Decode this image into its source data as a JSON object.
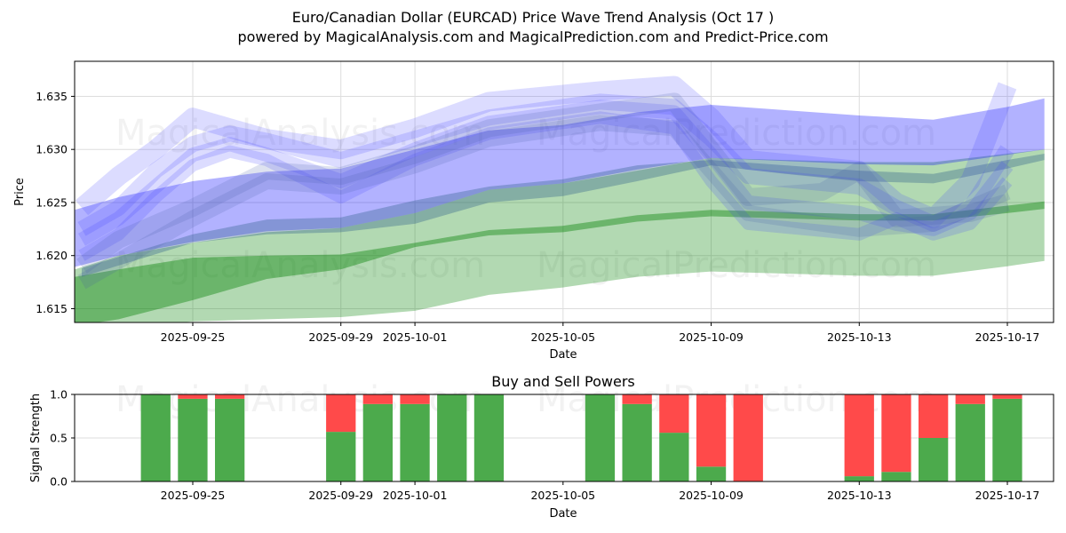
{
  "header": {
    "title": "Euro/Canadian Dollar (EURCAD) Price Wave Trend Analysis (Oct 17 )",
    "subtitle": "powered by MagicalAnalysis.com and MagicalPrediction.com and Predict-Price.com"
  },
  "watermarks": [
    "MagicalAnalysis.com",
    "MagicalPrediction.com"
  ],
  "colors": {
    "blue_band": "#0000ff",
    "green_band": "#008000",
    "buy": "#4caa4c",
    "sell": "#ff4a4a",
    "grid": "#dddddd"
  },
  "chart_data": [
    {
      "type": "area",
      "title": "",
      "xlabel": "Date",
      "ylabel": "Price",
      "ylim": [
        1.6137,
        1.6383
      ],
      "xlim": [
        "2025-09-21",
        "2025-10-18"
      ],
      "x_ticks": [
        "2025-09-25",
        "2025-09-29",
        "2025-10-01",
        "2025-10-05",
        "2025-10-09",
        "2025-10-13",
        "2025-10-17"
      ],
      "y_ticks": [
        "1.615",
        "1.620",
        "1.625",
        "1.630",
        "1.635"
      ],
      "grid": true,
      "series": [
        {
          "name": "green-wide-band",
          "color": "green",
          "opacity": 0.3,
          "x": [
            "2025-09-21",
            "2025-09-23",
            "2025-09-25",
            "2025-09-27",
            "2025-09-29",
            "2025-10-01",
            "2025-10-03",
            "2025-10-05",
            "2025-10-07",
            "2025-10-09",
            "2025-10-11",
            "2025-10-13",
            "2025-10-15",
            "2025-10-17",
            "2025-10-18"
          ],
          "upper": [
            1.6178,
            1.62,
            1.6212,
            1.6222,
            1.6226,
            1.624,
            1.6262,
            1.6268,
            1.628,
            1.6292,
            1.629,
            1.6288,
            1.6288,
            1.6296,
            1.63
          ],
          "lower": [
            1.6125,
            1.613,
            1.6138,
            1.614,
            1.6142,
            1.6148,
            1.6163,
            1.617,
            1.618,
            1.6185,
            1.6183,
            1.6181,
            1.6181,
            1.619,
            1.6195
          ]
        },
        {
          "name": "green-mid-band",
          "color": "green",
          "opacity": 0.4,
          "x": [
            "2025-09-21",
            "2025-09-23",
            "2025-09-25",
            "2025-09-27",
            "2025-09-29",
            "2025-10-01",
            "2025-10-03",
            "2025-10-05",
            "2025-10-07",
            "2025-10-09",
            "2025-10-11",
            "2025-10-13",
            "2025-10-15",
            "2025-10-17",
            "2025-10-18"
          ],
          "upper": [
            1.6175,
            1.6187,
            1.6198,
            1.62,
            1.6201,
            1.6212,
            1.6224,
            1.6228,
            1.6238,
            1.6243,
            1.6241,
            1.6239,
            1.6239,
            1.6247,
            1.6251
          ],
          "lower": [
            1.613,
            1.614,
            1.6158,
            1.6178,
            1.6187,
            1.6208,
            1.6219,
            1.6222,
            1.6232,
            1.6237,
            1.6235,
            1.6233,
            1.6233,
            1.624,
            1.6244
          ]
        },
        {
          "name": "blue-wide-band",
          "color": "blue",
          "opacity": 0.3,
          "x": [
            "2025-09-21",
            "2025-09-23",
            "2025-09-25",
            "2025-09-27",
            "2025-09-29",
            "2025-10-01",
            "2025-10-03",
            "2025-10-05",
            "2025-10-07",
            "2025-10-09",
            "2025-10-11",
            "2025-10-13",
            "2025-10-15",
            "2025-10-17",
            "2025-10-18"
          ],
          "upper": [
            1.6235,
            1.6255,
            1.627,
            1.6279,
            1.6282,
            1.63,
            1.6318,
            1.6323,
            1.6335,
            1.6342,
            1.6337,
            1.6332,
            1.6328,
            1.634,
            1.6348
          ],
          "lower": [
            1.6182,
            1.62,
            1.6213,
            1.6223,
            1.6226,
            1.624,
            1.6262,
            1.6268,
            1.6281,
            1.6292,
            1.6289,
            1.6286,
            1.6285,
            1.6295,
            1.63
          ]
        },
        {
          "name": "blue-grey-band",
          "color": "slate",
          "opacity": 0.35,
          "x": [
            "2025-09-22",
            "2025-09-25",
            "2025-09-27",
            "2025-09-29",
            "2025-10-01",
            "2025-10-03",
            "2025-10-05",
            "2025-10-07",
            "2025-10-09",
            "2025-10-11",
            "2025-10-13",
            "2025-10-15",
            "2025-10-17",
            "2025-10-18"
          ],
          "upper": [
            1.6188,
            1.622,
            1.6234,
            1.6236,
            1.6252,
            1.6265,
            1.6272,
            1.6285,
            1.629,
            1.6285,
            1.628,
            1.6277,
            1.629,
            1.6296
          ],
          "lower": [
            1.618,
            1.6212,
            1.622,
            1.6222,
            1.623,
            1.625,
            1.6256,
            1.627,
            1.6285,
            1.6277,
            1.627,
            1.6268,
            1.6282,
            1.629
          ]
        }
      ],
      "waves": [
        {
          "x": [
            "2025-09-22",
            "2025-09-23",
            "2025-09-24",
            "2025-09-25",
            "2025-09-26",
            "2025-09-27",
            "2025-09-29",
            "2025-10-01",
            "2025-10-03",
            "2025-10-06",
            "2025-10-08",
            "2025-10-09",
            "2025-10-10",
            "2025-10-13",
            "2025-10-14",
            "2025-10-15",
            "2025-10-16",
            "2025-10-17"
          ],
          "y": [
            1.6245,
            1.6275,
            1.63,
            1.633,
            1.632,
            1.631,
            1.63,
            1.632,
            1.6345,
            1.6355,
            1.636,
            1.633,
            1.629,
            1.628,
            1.625,
            1.6235,
            1.627,
            1.636
          ]
        },
        {
          "x": [
            "2025-09-22",
            "2025-09-23",
            "2025-09-24",
            "2025-09-25",
            "2025-09-26",
            "2025-09-27",
            "2025-09-29",
            "2025-10-01",
            "2025-10-03",
            "2025-10-06",
            "2025-10-08",
            "2025-10-09",
            "2025-10-10",
            "2025-10-13",
            "2025-10-14",
            "2025-10-15",
            "2025-10-16",
            "2025-10-17"
          ],
          "y": [
            1.6225,
            1.6245,
            1.628,
            1.6305,
            1.6315,
            1.6308,
            1.629,
            1.631,
            1.633,
            1.6345,
            1.634,
            1.631,
            1.6275,
            1.6265,
            1.6245,
            1.623,
            1.6245,
            1.63
          ]
        },
        {
          "x": [
            "2025-09-22",
            "2025-09-23",
            "2025-09-24",
            "2025-09-25",
            "2025-09-26",
            "2025-09-27",
            "2025-09-29",
            "2025-10-01",
            "2025-10-03",
            "2025-10-06",
            "2025-10-08",
            "2025-10-09",
            "2025-10-10",
            "2025-10-13",
            "2025-10-14",
            "2025-10-15",
            "2025-10-16",
            "2025-10-17"
          ],
          "y": [
            1.6215,
            1.6235,
            1.6265,
            1.6295,
            1.6305,
            1.6295,
            1.627,
            1.63,
            1.6325,
            1.634,
            1.6335,
            1.6295,
            1.625,
            1.624,
            1.623,
            1.6225,
            1.624,
            1.6285
          ]
        },
        {
          "x": [
            "2025-09-22",
            "2025-09-23",
            "2025-09-24",
            "2025-09-25",
            "2025-09-26",
            "2025-09-27",
            "2025-09-29",
            "2025-10-01",
            "2025-10-03",
            "2025-10-06",
            "2025-10-08",
            "2025-10-09",
            "2025-10-10",
            "2025-10-13",
            "2025-10-14",
            "2025-10-15",
            "2025-10-16",
            "2025-10-17"
          ],
          "y": [
            1.62,
            1.622,
            1.6255,
            1.6285,
            1.6298,
            1.629,
            1.6255,
            1.629,
            1.6315,
            1.633,
            1.632,
            1.627,
            1.623,
            1.622,
            1.6235,
            1.622,
            1.623,
            1.627
          ]
        },
        {
          "x": [
            "2025-09-22",
            "2025-09-23",
            "2025-09-25",
            "2025-09-27",
            "2025-09-29",
            "2025-10-01",
            "2025-10-03",
            "2025-10-06",
            "2025-10-08",
            "2025-10-09",
            "2025-10-10",
            "2025-10-12",
            "2025-10-13",
            "2025-10-14",
            "2025-10-16",
            "2025-10-17"
          ],
          "y": [
            1.619,
            1.6215,
            1.6245,
            1.628,
            1.6275,
            1.6295,
            1.632,
            1.6335,
            1.6345,
            1.63,
            1.6255,
            1.626,
            1.628,
            1.6235,
            1.624,
            1.625
          ]
        },
        {
          "x": [
            "2025-09-22",
            "2025-09-23",
            "2025-09-25",
            "2025-09-27",
            "2025-09-29",
            "2025-10-01",
            "2025-10-03",
            "2025-10-06",
            "2025-10-08",
            "2025-10-09",
            "2025-10-10",
            "2025-10-13",
            "2025-10-15",
            "2025-10-17"
          ],
          "y": [
            1.6175,
            1.6195,
            1.6235,
            1.627,
            1.6265,
            1.6285,
            1.631,
            1.6325,
            1.632,
            1.628,
            1.624,
            1.6225,
            1.623,
            1.626
          ]
        }
      ]
    },
    {
      "type": "bar",
      "title": "Buy and Sell Powers",
      "xlabel": "Date",
      "ylabel": "Signal Strength",
      "ylim": [
        0,
        1
      ],
      "y_ticks": [
        "0.0",
        "0.5",
        "1.0"
      ],
      "x_ticks": [
        "2025-09-25",
        "2025-09-29",
        "2025-10-01",
        "2025-10-05",
        "2025-10-09",
        "2025-10-13",
        "2025-10-17"
      ],
      "grid": true,
      "categories": [
        "2025-09-24",
        "2025-09-25",
        "2025-09-26",
        "2025-09-29",
        "2025-09-30",
        "2025-10-01",
        "2025-10-02",
        "2025-10-03",
        "2025-10-06",
        "2025-10-07",
        "2025-10-08",
        "2025-10-09",
        "2025-10-10",
        "2025-10-13",
        "2025-10-14",
        "2025-10-15",
        "2025-10-16",
        "2025-10-17"
      ],
      "series": [
        {
          "name": "Buy",
          "values": [
            1.0,
            0.95,
            0.95,
            0.57,
            0.89,
            0.89,
            1.0,
            1.0,
            1.0,
            0.89,
            0.56,
            0.17,
            0.0,
            0.06,
            0.11,
            0.5,
            0.89,
            0.95
          ]
        },
        {
          "name": "Sell",
          "values": [
            0.0,
            0.05,
            0.05,
            0.43,
            0.11,
            0.11,
            0.0,
            0.0,
            0.0,
            0.11,
            0.44,
            0.83,
            1.0,
            0.94,
            0.89,
            0.5,
            0.11,
            0.05
          ]
        }
      ]
    }
  ]
}
